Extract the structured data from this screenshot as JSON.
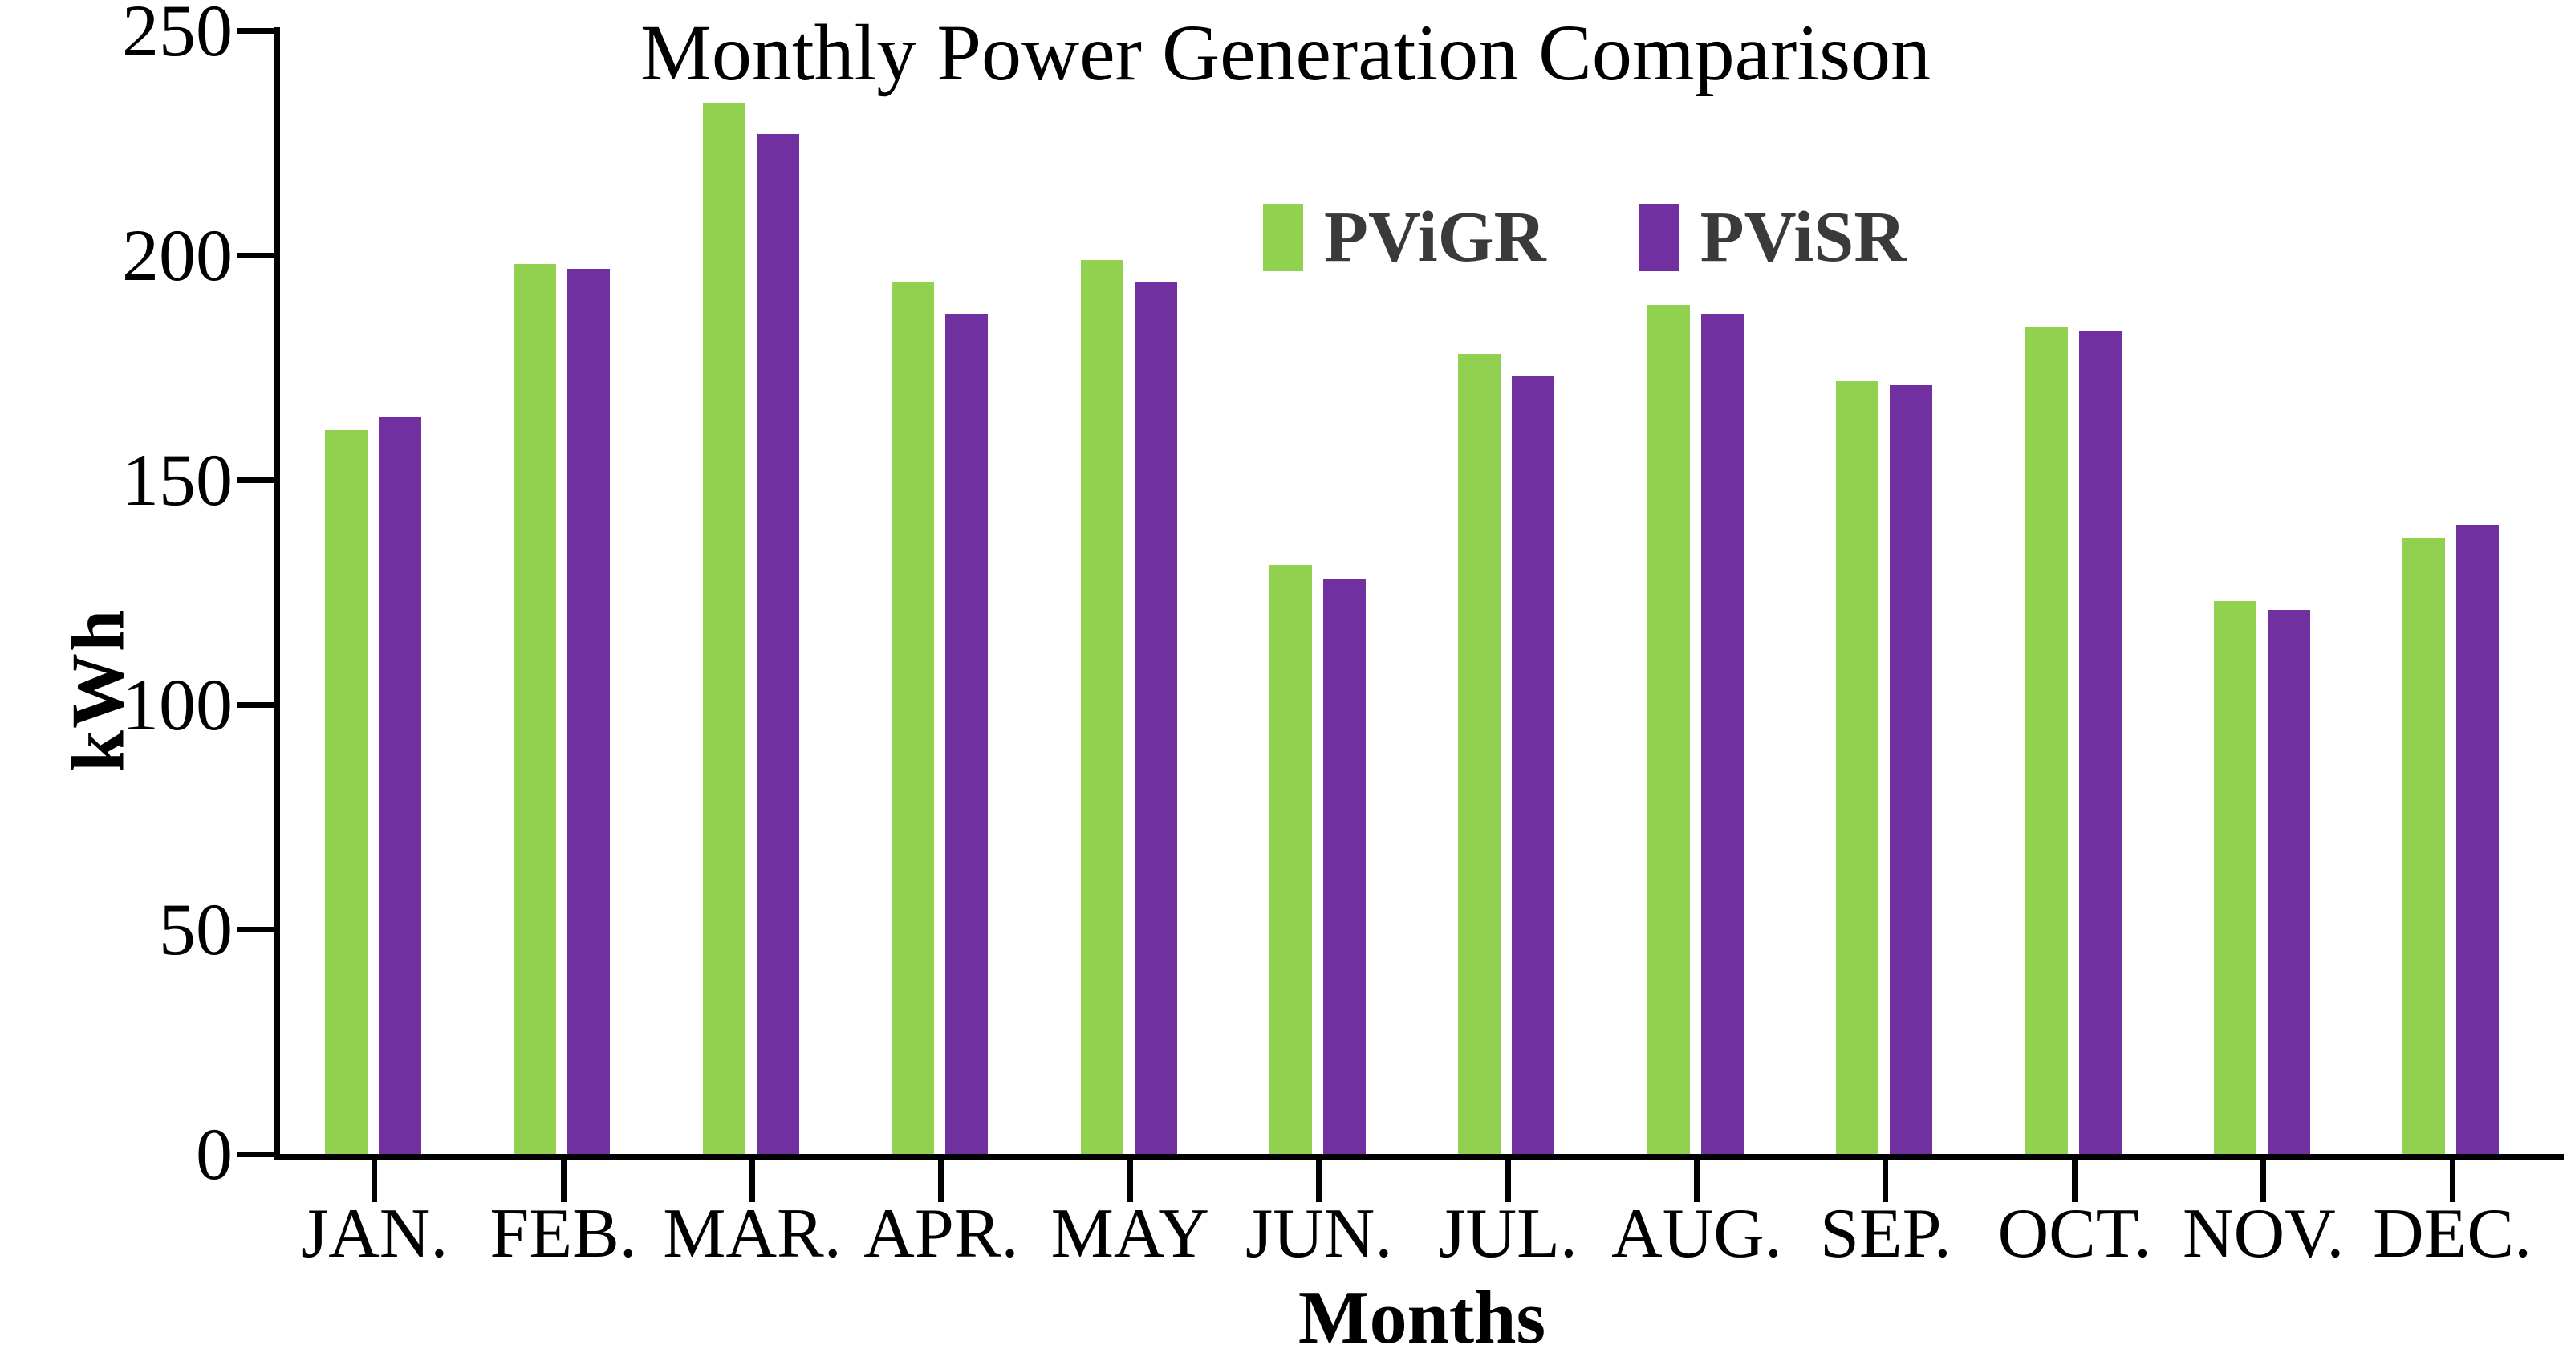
{
  "title": {
    "text": "Monthly Power Generation Comparison"
  },
  "y_axis": {
    "label": "kWh",
    "ticks": [
      0,
      50,
      100,
      150,
      200,
      250
    ],
    "max": 250
  },
  "x_axis": {
    "label": "Months"
  },
  "legend": {
    "items": [
      {
        "label": "PViGR",
        "color": "#92D050"
      },
      {
        "label": "PViSR",
        "color": "#7030A0"
      }
    ],
    "text_color": "#3a3a3a"
  },
  "chart_data": {
    "type": "bar",
    "title": "Monthly Power Generation Comparison",
    "xlabel": "Months",
    "ylabel": "kWh",
    "ylim": [
      0,
      250
    ],
    "grid": false,
    "legend_position": "upper-center",
    "categories": [
      "JAN.",
      "FEB.",
      "MAR.",
      "APR.",
      "MAY",
      "JUN.",
      "JUL.",
      "AUG.",
      "SEP.",
      "OCT.",
      "NOV.",
      "DEC."
    ],
    "series": [
      {
        "name": "PViGR",
        "color": "#92D050",
        "values": [
          161,
          198,
          234,
          194,
          199,
          131,
          178,
          189,
          172,
          184,
          123,
          137
        ]
      },
      {
        "name": "PViSR",
        "color": "#7030A0",
        "values": [
          164,
          197,
          227,
          187,
          194,
          128,
          173,
          187,
          171,
          183,
          121,
          140
        ]
      }
    ]
  }
}
